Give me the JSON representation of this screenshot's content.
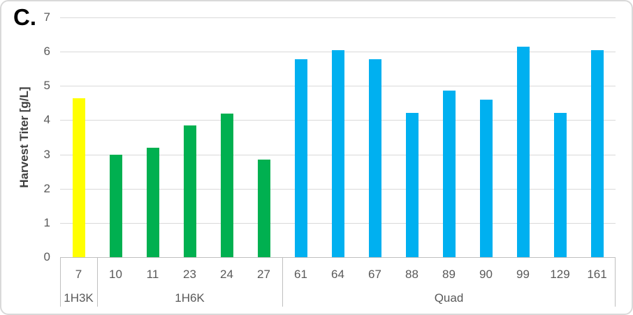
{
  "panel_label": "C.",
  "chart_data": {
    "type": "bar",
    "title": "",
    "xlabel": "",
    "ylabel": "Harvest Titer [g/L]",
    "ylim": [
      0,
      7
    ],
    "ytick_step": 1,
    "grid": true,
    "legend": "none",
    "groups": [
      {
        "label": "1H3K",
        "color": "#FFFF00",
        "categories": [
          "7"
        ],
        "values": [
          4.65
        ]
      },
      {
        "label": "1H6K",
        "color": "#00B050",
        "categories": [
          "10",
          "11",
          "23",
          "24",
          "27"
        ],
        "values": [
          3.0,
          3.2,
          3.85,
          4.2,
          2.85
        ]
      },
      {
        "label": "Quad",
        "color": "#00B0F0",
        "categories": [
          "61",
          "64",
          "67",
          "88",
          "89",
          "90",
          "99",
          "129",
          "161"
        ],
        "values": [
          5.78,
          6.05,
          5.78,
          4.22,
          4.87,
          4.6,
          6.15,
          4.22,
          6.05
        ]
      }
    ]
  },
  "colors": {
    "background": "#FFFFFF",
    "gridline": "#D9D9D9",
    "axis_table_border": "#BFBFBF",
    "tick_text": "#595959",
    "axis_title_text": "#3F3F3F",
    "panel_label_text": "#000000",
    "outer_border": "#D9D9D9"
  }
}
